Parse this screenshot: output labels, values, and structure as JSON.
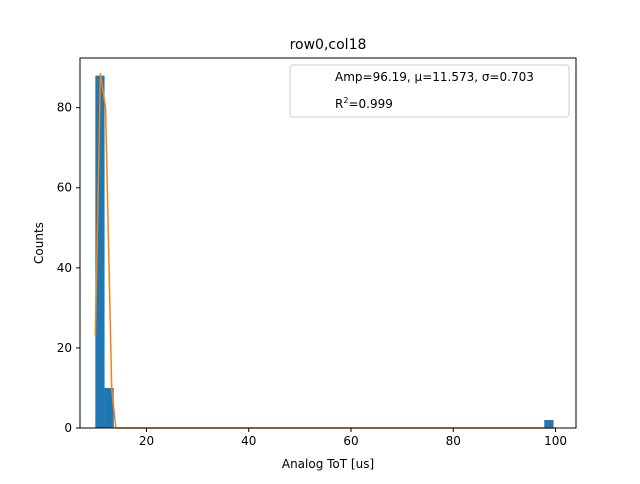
{
  "chart_data": {
    "type": "bar",
    "title": "row0,col18",
    "xlabel": "Analog ToT [us]",
    "ylabel": "Counts",
    "xlim": [
      7.0,
      104.0
    ],
    "ylim": [
      0,
      92.4
    ],
    "x_ticks": [
      20,
      40,
      60,
      80,
      100
    ],
    "y_ticks": [
      0,
      20,
      40,
      60,
      80
    ],
    "bin_width": 1.8,
    "bars": [
      {
        "x": 10.0,
        "value": 88
      },
      {
        "x": 11.8,
        "value": 10
      },
      {
        "x": 97.8,
        "value": 2
      }
    ],
    "fit_curve": [
      [
        10.0,
        23
      ],
      [
        11.0,
        88.5
      ],
      [
        12.0,
        80
      ],
      [
        13.2,
        10
      ],
      [
        14.0,
        0
      ],
      [
        100.0,
        0
      ]
    ],
    "legend": {
      "placement": "top-right",
      "line1": "Amp=96.19, μ=11.573, σ=0.703",
      "line2_base": "R",
      "line2_sup": "2",
      "line2_rest": "=0.999"
    },
    "colors": {
      "bar": "#1f77b4",
      "fit": "#ff7f0e",
      "axis": "#000000"
    }
  }
}
